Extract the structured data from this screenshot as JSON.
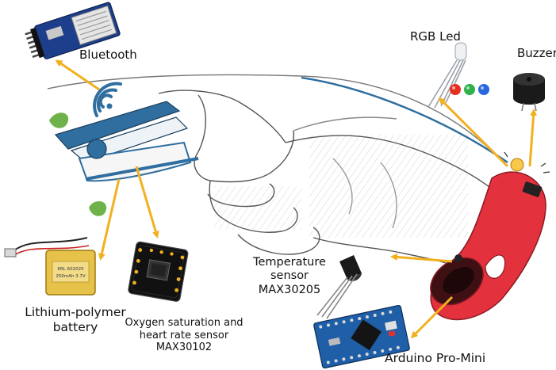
{
  "labels": {
    "bluetooth": "Bluetooth",
    "rgb_led": "RGB Led",
    "buzzer": "Buzzer",
    "temperature": [
      "Temperature",
      "sensor",
      "MAX30205"
    ],
    "lipo": [
      "Lithium-polymer",
      "battery"
    ],
    "oximeter": [
      "Oxygen saturation and",
      "heart rate sensor",
      "MAX30102"
    ],
    "arduino": "Arduino Pro-Mini"
  },
  "module_text": {
    "battery_print": [
      "KRL 602025",
      "250mAh 3.7V"
    ]
  },
  "colors": {
    "arrow": "#f2b01e",
    "device_red": "#e3323d",
    "clip_blue": "#2f6e9f",
    "pcb_blue": "#1f5fa8",
    "sketch": "#5a5a5a",
    "leaf": "#6fb24a"
  },
  "icons": [
    "bluetooth-module",
    "rgb-led",
    "buzzer",
    "temperature-sensor",
    "lipo-battery",
    "oximeter-module",
    "arduino-board",
    "wifi-signal-icon",
    "leaf-icon",
    "hand-sketch"
  ]
}
